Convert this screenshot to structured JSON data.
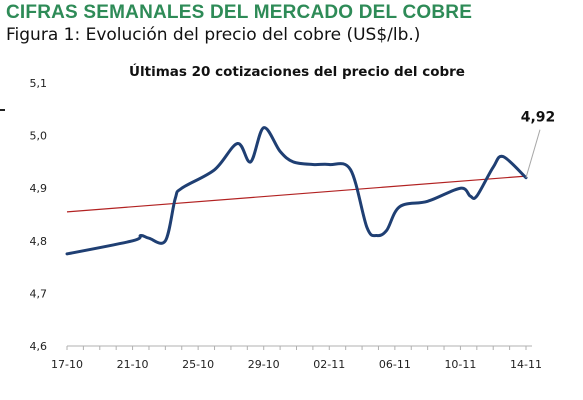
{
  "header": {
    "section_title": "CIFRAS SEMANALES DEL MERCADO DEL COBRE",
    "figure_caption": "Figura 1: Evolución del precio del cobre (US$/lb.)"
  },
  "chart_data": {
    "type": "line",
    "title": "Últimas 20 cotizaciones del precio del cobre",
    "xlabel": "",
    "ylabel": "",
    "ylim": [
      4.6,
      5.1
    ],
    "y_ticks": [
      "5,1",
      "5,0",
      "4,9",
      "4,8",
      "4,7",
      "4,6"
    ],
    "y_tick_values": [
      5.1,
      5.0,
      4.9,
      4.8,
      4.7,
      4.6
    ],
    "x_tick_labels": [
      "17-10",
      "21-10",
      "25-10",
      "29-10",
      "02-11",
      "06-11",
      "10-11",
      "14-11"
    ],
    "x_tick_positions": [
      0,
      4,
      8,
      12,
      16,
      20,
      24,
      28
    ],
    "x_range": [
      0,
      28
    ],
    "series": [
      {
        "color": "#1f3f73",
        "x": [
          0,
          4,
          4.5,
          5,
          6,
          6.6,
          7,
          9,
          10.4,
          11.2,
          12,
          13,
          13.8,
          15,
          16,
          17.3,
          18.3,
          18.9,
          19.5,
          20.3,
          22,
          24,
          24.6,
          25,
          26,
          26.6,
          28
        ],
        "values": [
          4.775,
          4.8,
          4.81,
          4.805,
          4.8,
          4.88,
          4.9,
          4.935,
          4.985,
          4.95,
          5.015,
          4.97,
          4.95,
          4.945,
          4.945,
          4.935,
          4.825,
          4.81,
          4.82,
          4.865,
          4.875,
          4.9,
          4.885,
          4.885,
          4.94,
          4.96,
          4.92
        ]
      }
    ],
    "trend": {
      "color": "#b22222",
      "x": [
        0,
        28
      ],
      "values": [
        4.855,
        4.923
      ]
    },
    "annotation": {
      "text": "4,92",
      "x": 28,
      "value": 4.92
    },
    "grid": false,
    "legend": "none"
  }
}
